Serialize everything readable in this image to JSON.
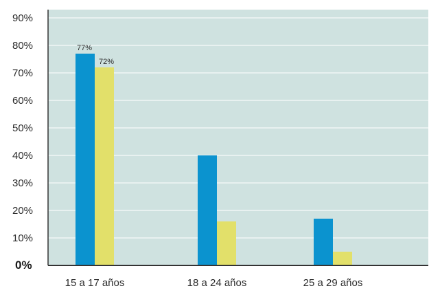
{
  "chart_data": {
    "type": "bar",
    "title": "",
    "xlabel": "",
    "ylabel": "",
    "categories": [
      "15 a 17 años",
      "18 a 24 años",
      "25 a 29 años"
    ],
    "series": [
      {
        "color": "#0b93cf",
        "values": [
          77,
          40,
          17
        ],
        "labels": [
          "77%",
          "",
          ""
        ]
      },
      {
        "color": "#e2e06a",
        "values": [
          72,
          16,
          5
        ],
        "labels": [
          "72%",
          "",
          ""
        ]
      }
    ],
    "ylim": [
      0,
      90
    ],
    "yticks": [
      0,
      10,
      20,
      30,
      40,
      50,
      60,
      70,
      80,
      90
    ],
    "ytick_labels": [
      "0%",
      "10%",
      "20%",
      "30%",
      "40%",
      "50%",
      "60%",
      "70%",
      "80%",
      "90%"
    ],
    "grid": true,
    "legend": "none",
    "background_color": "#cfe2e0",
    "grid_color": "#f0f6f5"
  }
}
